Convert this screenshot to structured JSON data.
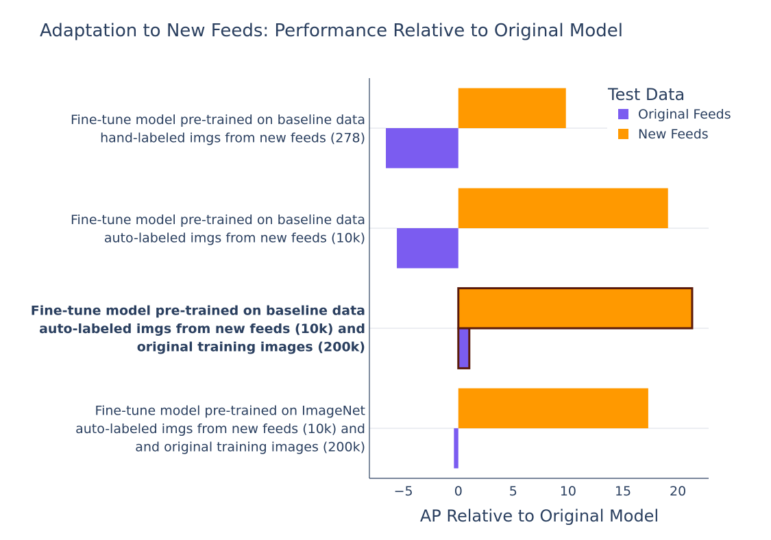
{
  "chart_data": {
    "type": "bar",
    "orientation": "horizontal",
    "title": "Adaptation to New Feeds: Performance Relative to Original Model",
    "xlabel": "AP Relative to Original Model",
    "ylabel": "",
    "xlim": [
      -8.1,
      22.8
    ],
    "xticks": [
      -5,
      0,
      5,
      10,
      15,
      20
    ],
    "xtick_labels": [
      "−5",
      "0",
      "5",
      "10",
      "15",
      "20"
    ],
    "grid": "horizontal lines at categories",
    "categories": [
      {
        "lines": [
          "Fine-tune model pre-trained on baseline data",
          "hand-labeled imgs from new feeds (278)"
        ],
        "bold": false
      },
      {
        "lines": [
          "Fine-tune model pre-trained on baseline data",
          "auto-labeled imgs from new feeds (10k)"
        ],
        "bold": false
      },
      {
        "lines": [
          "Fine-tune model pre-trained on baseline data",
          "auto-labeled imgs from new feeds (10k) and",
          "original training images (200k)"
        ],
        "bold": true
      },
      {
        "lines": [
          "Fine-tune model pre-trained on ImageNet",
          "auto-labeled imgs from new feeds (10k) and",
          "and original training images (200k)"
        ],
        "bold": false
      }
    ],
    "series": [
      {
        "name": "Original Feeds",
        "color": "#7b5cf0",
        "values": [
          -6.6,
          -5.6,
          1.0,
          -0.4
        ]
      },
      {
        "name": "New Feeds",
        "color": "#ff9900",
        "values": [
          9.8,
          19.1,
          21.3,
          17.3
        ]
      }
    ],
    "highlight_category_index": 2,
    "highlight_outline_color": "#5a1a0a",
    "legend": {
      "title": "Test Data",
      "placement": "top-right"
    }
  }
}
